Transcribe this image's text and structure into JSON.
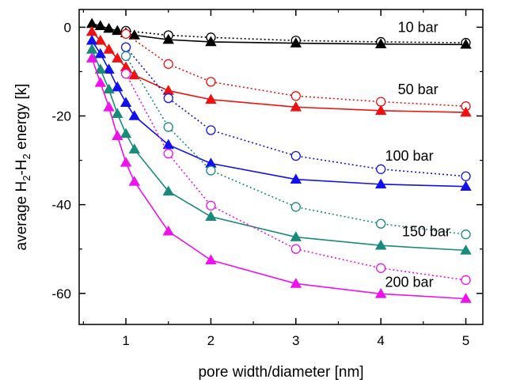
{
  "chart_data": {
    "type": "line",
    "title": "",
    "xlabel": "pore width/diameter [nm]",
    "ylabel_parts": {
      "pre": "average H",
      "sub1": "2",
      "mid": "-H",
      "sub2": "2",
      "post": " energy [k]"
    },
    "xlim": [
      0.45,
      5.2
    ],
    "ylim": [
      -67,
      4
    ],
    "xticks": [
      1,
      2,
      3,
      4,
      5
    ],
    "yticks": [
      0,
      -20,
      -40,
      -60
    ],
    "grid": false,
    "series": [
      {
        "pressure": "10 bar",
        "color": "#000000",
        "label": {
          "text": "10 bar",
          "x": 4.2,
          "y": 0
        },
        "filled_triangles": {
          "x": [
            0.6,
            0.7,
            0.8,
            0.9,
            1.0,
            1.1,
            1.5,
            2,
            3,
            4,
            5
          ],
          "y": [
            0.8,
            0.3,
            -0.3,
            -0.8,
            -1.3,
            -1.8,
            -2.8,
            -3.3,
            -3.6,
            -3.8,
            -3.9
          ]
        },
        "open_circles": {
          "x": [
            1.0,
            1.5,
            2,
            3,
            4,
            5
          ],
          "y": [
            -0.8,
            -1.8,
            -2.3,
            -3.0,
            -3.3,
            -3.5
          ]
        }
      },
      {
        "pressure": "50 bar",
        "color": "#ee1111",
        "label": {
          "text": "50 bar",
          "x": 4.2,
          "y": -14
        },
        "filled_triangles": {
          "x": [
            0.6,
            0.7,
            0.8,
            0.9,
            1.0,
            1.1,
            1.5,
            2,
            3,
            4,
            5
          ],
          "y": [
            -1.0,
            -3.0,
            -5.0,
            -7.0,
            -9.0,
            -10.8,
            -14.3,
            -16.3,
            -18.0,
            -18.8,
            -19.2
          ]
        },
        "open_circles": {
          "x": [
            1.0,
            1.5,
            2,
            3,
            4,
            5
          ],
          "y": [
            -1.5,
            -8.3,
            -12.3,
            -15.5,
            -16.8,
            -17.8
          ]
        }
      },
      {
        "pressure": "100 bar",
        "color": "#1111ee",
        "label": {
          "text": "100 bar",
          "x": 4.05,
          "y": -29
        },
        "filled_triangles": {
          "x": [
            0.6,
            0.7,
            0.8,
            0.9,
            1.0,
            1.1,
            1.5,
            2,
            3,
            4,
            5
          ],
          "y": [
            -3.0,
            -6.0,
            -9.5,
            -13.5,
            -17.0,
            -20.0,
            -26.5,
            -30.7,
            -34.3,
            -35.4,
            -35.9
          ]
        },
        "open_circles": {
          "x": [
            1.0,
            1.5,
            2,
            3,
            4,
            5
          ],
          "y": [
            -4.5,
            -16.0,
            -23.2,
            -29.0,
            -32.0,
            -33.6
          ]
        }
      },
      {
        "pressure": "150 bar",
        "color": "#1a8a7a",
        "label": {
          "text": "150 bar",
          "x": 4.25,
          "y": -46
        },
        "filled_triangles": {
          "x": [
            0.6,
            0.7,
            0.8,
            0.9,
            1.0,
            1.1,
            1.5,
            2,
            3,
            4,
            5
          ],
          "y": [
            -5.0,
            -9.5,
            -14.0,
            -19.5,
            -24.0,
            -27.5,
            -37.0,
            -42.7,
            -47.3,
            -49.2,
            -50.3
          ]
        },
        "open_circles": {
          "x": [
            1.0,
            1.5,
            2,
            3,
            4,
            5
          ],
          "y": [
            -6.5,
            -22.5,
            -32.3,
            -40.5,
            -44.3,
            -46.7
          ]
        }
      },
      {
        "pressure": "200 bar",
        "color": "#ee11ee",
        "label": {
          "text": "200 bar",
          "x": 4.05,
          "y": -57.5
        },
        "filled_triangles": {
          "x": [
            0.6,
            0.7,
            0.8,
            0.9,
            1.0,
            1.1,
            1.5,
            2,
            3,
            4,
            5
          ],
          "y": [
            -7.0,
            -12.5,
            -18.0,
            -24.5,
            -30.5,
            -34.8,
            -46.0,
            -52.5,
            -57.8,
            -60.1,
            -61.2
          ]
        },
        "open_circles": {
          "x": [
            1.0,
            1.5,
            2,
            3,
            4,
            5
          ],
          "y": [
            -10.5,
            -28.5,
            -40.2,
            -50.0,
            -54.3,
            -57.0
          ]
        }
      }
    ]
  }
}
